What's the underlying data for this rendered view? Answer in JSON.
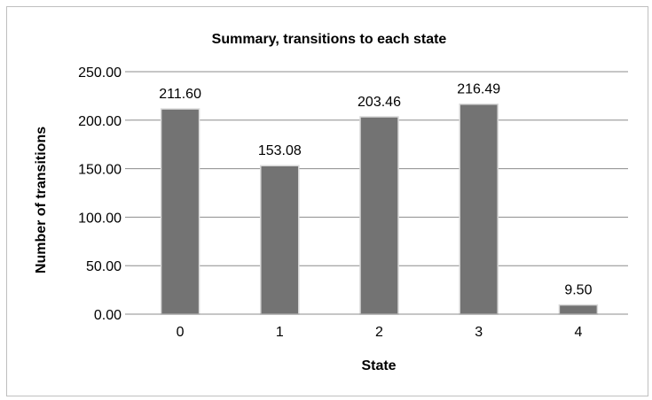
{
  "chart_data": {
    "type": "bar",
    "title": "Summary, transitions to each state",
    "xlabel": "State",
    "ylabel": "Number of transitions",
    "categories": [
      "0",
      "1",
      "2",
      "3",
      "4"
    ],
    "values": [
      211.6,
      153.08,
      203.46,
      216.49,
      9.5
    ],
    "data_labels": [
      "211.60",
      "153.08",
      "203.46",
      "216.49",
      "9.50"
    ],
    "ylim": [
      0,
      250
    ],
    "yticks": [
      0,
      50,
      100,
      150,
      200,
      250
    ],
    "ytick_labels": [
      "0.00",
      "50.00",
      "100.00",
      "150.00",
      "200.00",
      "250.00"
    ],
    "grid": true,
    "legend": "none",
    "colors": {
      "bar": "#737373",
      "bar_edge": "#d9d9d9",
      "grid": "#8c8c8c",
      "axis": "#8c8c8c",
      "frame": "#bfbfbf"
    }
  }
}
